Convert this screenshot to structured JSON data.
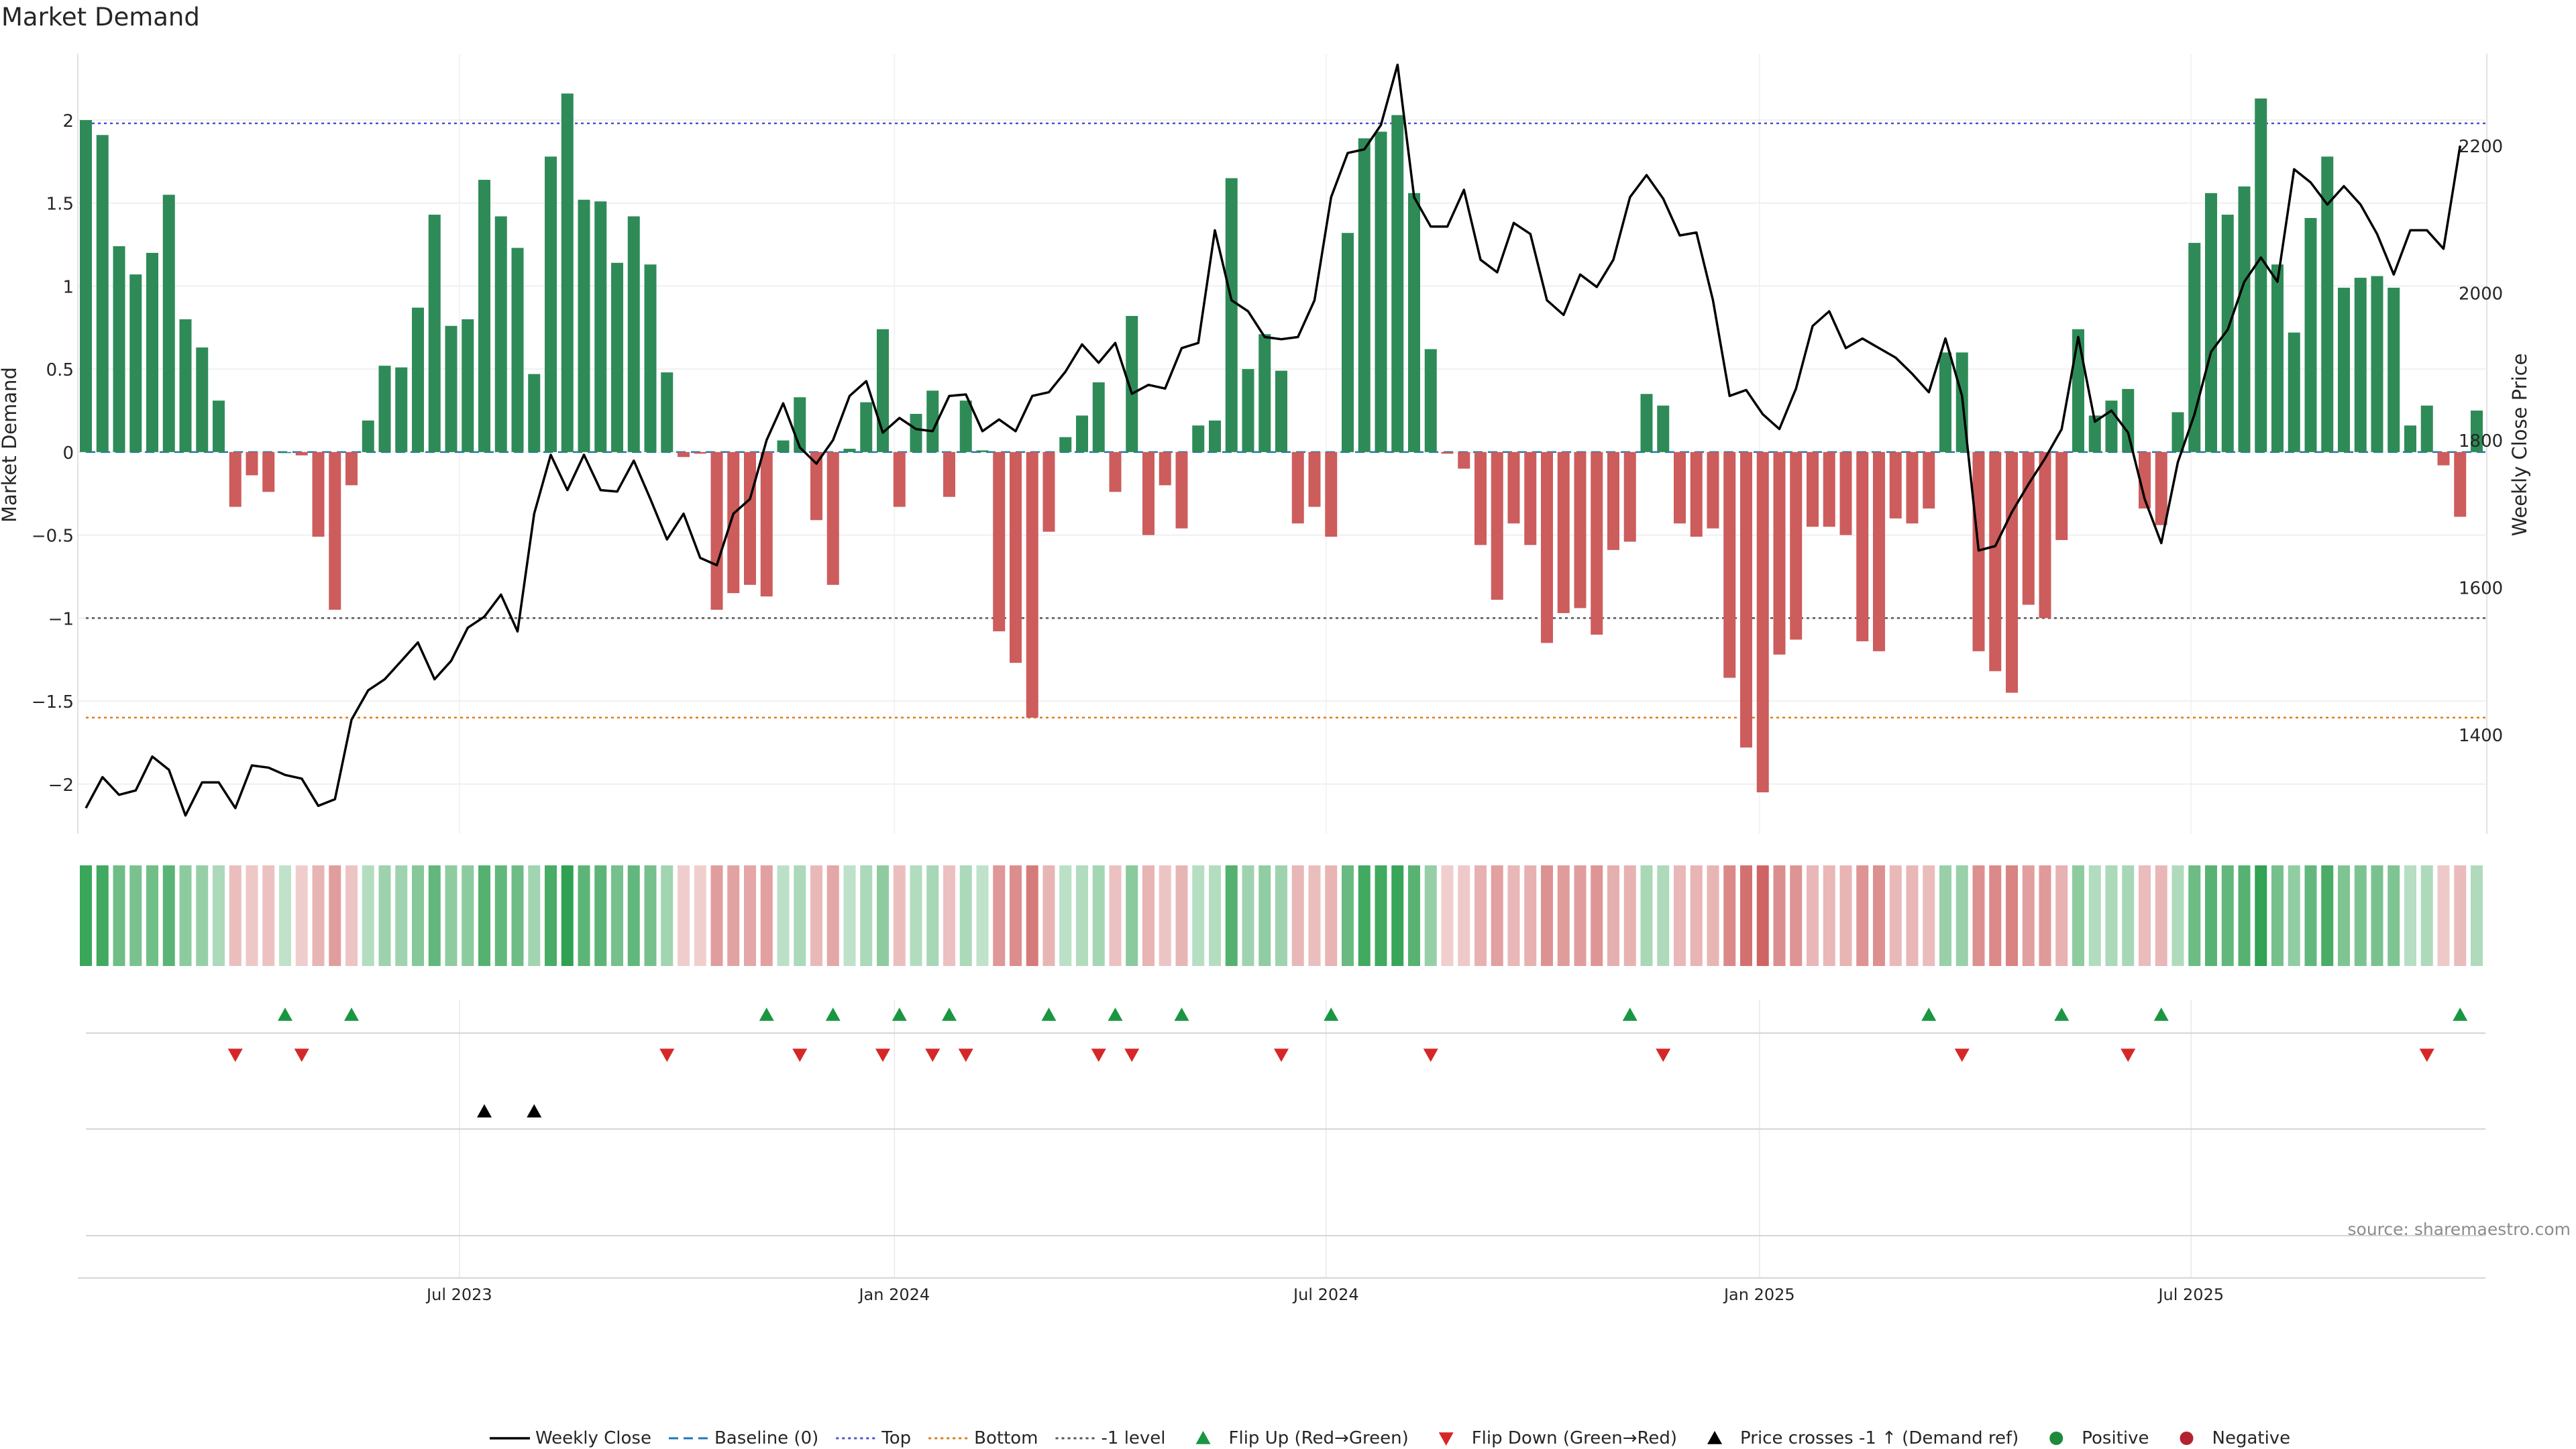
{
  "title": "Market Demand",
  "source": "source: sharemaestro.com",
  "colors": {
    "positive_bar": "#2e8b57",
    "negative_bar": "#cd5c5c",
    "price_line": "#000000",
    "top_line": "#4b50d1",
    "bottom_line": "#e07b1a",
    "minus1_line": "#555555",
    "baseline": "#1f77b4",
    "flip_up": "#1a9641",
    "flip_down": "#d62728",
    "cross_marker": "#000000",
    "positive_dot": "#1e8a3c",
    "negative_dot": "#b22230"
  },
  "chart_data": {
    "type": "bar",
    "title": "Market Demand",
    "ylabel": "Market Demand",
    "y2label": "Weekly Close Price",
    "ylim": [
      -2.3,
      2.4
    ],
    "y2lim": [
      1265,
      2325
    ],
    "yticks": [
      "2",
      "1.5",
      "1",
      "0.5",
      "0",
      "−0.5",
      "−1",
      "−1.5",
      "−2"
    ],
    "ytick_values": [
      2,
      1.5,
      1,
      0.5,
      0,
      -0.5,
      -1,
      -1.5,
      -2
    ],
    "y2ticks": [
      "2200",
      "2000",
      "1800",
      "1600",
      "1400"
    ],
    "y2tick_values": [
      2200,
      2000,
      1800,
      1600,
      1400
    ],
    "xticks": [
      "Jul 2023",
      "Jan 2024",
      "Jul 2024",
      "Jan 2025",
      "Jul 2025"
    ],
    "xtick_positions": [
      22.5,
      48.7,
      74.7,
      100.8,
      126.8
    ],
    "reference_lines": {
      "top": 1.98,
      "bottom": -1.6,
      "minus_one": -1.0,
      "baseline": 0
    },
    "demand": [
      2.0,
      1.91,
      1.24,
      1.07,
      1.2,
      1.55,
      0.8,
      0.63,
      0.31,
      -0.33,
      -0.14,
      -0.24,
      0.0,
      -0.02,
      -0.51,
      -0.95,
      -0.2,
      0.19,
      0.52,
      0.51,
      0.87,
      1.43,
      0.76,
      0.8,
      1.64,
      1.42,
      1.23,
      0.47,
      1.78,
      2.16,
      1.52,
      1.51,
      1.14,
      1.42,
      1.13,
      0.48,
      -0.03,
      -0.01,
      -0.95,
      -0.85,
      -0.8,
      -0.87,
      0.07,
      0.33,
      -0.41,
      -0.8,
      0.02,
      0.3,
      0.74,
      -0.33,
      0.23,
      0.37,
      -0.27,
      0.31,
      0.01,
      -1.08,
      -1.27,
      -1.6,
      -0.48,
      0.09,
      0.22,
      0.42,
      -0.24,
      0.82,
      -0.5,
      -0.2,
      -0.46,
      0.16,
      0.19,
      1.65,
      0.5,
      0.71,
      0.49,
      -0.43,
      -0.33,
      -0.51,
      1.32,
      1.89,
      1.93,
      2.03,
      1.56,
      0.62,
      -0.01,
      -0.1,
      -0.56,
      -0.89,
      -0.43,
      -0.56,
      -1.15,
      -0.97,
      -0.94,
      -1.1,
      -0.59,
      -0.54,
      0.35,
      0.28,
      -0.43,
      -0.51,
      -0.46,
      -1.36,
      -1.78,
      -2.05,
      -1.22,
      -1.13,
      -0.45,
      -0.45,
      -0.5,
      -1.14,
      -1.2,
      -0.4,
      -0.43,
      -0.34,
      0.6,
      0.6,
      -1.2,
      -1.32,
      -1.45,
      -0.92,
      -1.0,
      -0.53,
      0.74,
      0.22,
      0.31,
      0.38,
      -0.34,
      -0.44,
      0.24,
      1.26,
      1.56,
      1.43,
      1.6,
      2.13,
      1.13,
      0.72,
      1.41,
      1.78,
      0.99,
      1.05,
      1.06,
      0.99,
      0.16,
      0.28,
      -0.08,
      -0.39,
      0.25
    ],
    "weekly_close": [
      1300,
      1342,
      1318,
      1324,
      1370,
      1352,
      1290,
      1335,
      1335,
      1300,
      1358,
      1355,
      1345,
      1340,
      1303,
      1312,
      1420,
      1460,
      1475,
      1500,
      1525,
      1475,
      1500,
      1545,
      1560,
      1590,
      1540,
      1700,
      1780,
      1732,
      1780,
      1732,
      1730,
      1772,
      1720,
      1665,
      1700,
      1640,
      1630,
      1700,
      1720,
      1800,
      1850,
      1790,
      1768,
      1800,
      1860,
      1880,
      1810,
      1830,
      1815,
      1812,
      1860,
      1862,
      1812,
      1828,
      1812,
      1860,
      1865,
      1893,
      1930,
      1905,
      1932,
      1863,
      1875,
      1870,
      1925,
      1932,
      2085,
      1990,
      1975,
      1940,
      1937,
      1940,
      1990,
      2130,
      2190,
      2195,
      2228,
      2310,
      2130,
      2090,
      2090,
      2140,
      2045,
      2028,
      2095,
      2080,
      1990,
      1970,
      2025,
      2008,
      2045,
      2130,
      2160,
      2128,
      2078,
      2082,
      1990,
      1860,
      1868,
      1835,
      1815,
      1870,
      1955,
      1975,
      1925,
      1938,
      1925,
      1912,
      1890,
      1865,
      1938,
      1860,
      1650,
      1656,
      1702,
      1740,
      1775,
      1815,
      1940,
      1825,
      1840,
      1810,
      1720,
      1660,
      1770,
      1835,
      1920,
      1950,
      2015,
      2048,
      2015,
      2168,
      2150,
      2120,
      2145,
      2120,
      2080,
      2025,
      2085,
      2085,
      2060,
      2200
    ],
    "flip_up_indices": [
      12,
      16,
      41,
      45,
      49,
      52,
      58,
      62,
      66,
      75,
      93,
      111,
      119,
      125,
      143
    ],
    "flip_down_indices": [
      9,
      13,
      35,
      43,
      48,
      51,
      53,
      61,
      63,
      72,
      81,
      95,
      113,
      123,
      141
    ],
    "price_cross_indices": [
      24,
      27
    ]
  },
  "legend": [
    {
      "label": "Weekly Close",
      "kind": "line"
    },
    {
      "label": "Baseline (0)",
      "kind": "baseline"
    },
    {
      "label": "Top",
      "kind": "top"
    },
    {
      "label": "Bottom",
      "kind": "bottom"
    },
    {
      "label": "-1 level",
      "kind": "minus1"
    },
    {
      "label": "Flip Up (Red→Green)",
      "kind": "up"
    },
    {
      "label": "Flip Down (Green→Red)",
      "kind": "down"
    },
    {
      "label": "Price crosses -1 ↑ (Demand ref)",
      "kind": "cross"
    },
    {
      "label": "Positive",
      "kind": "pos"
    },
    {
      "label": "Negative",
      "kind": "neg"
    }
  ]
}
